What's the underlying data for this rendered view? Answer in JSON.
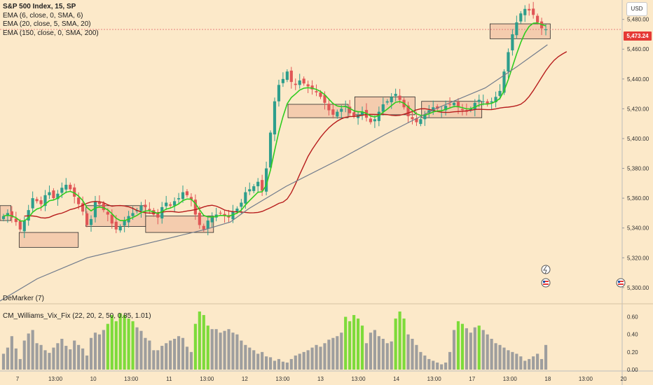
{
  "legend": {
    "symbol": "S&P 500 Index, 15, SP",
    "ema1": "EMA (6, close, 0, SMA, 6)",
    "ema2": "EMA (20, close, 5, SMA, 20)",
    "ema3": "EMA (150, close, 0, SMA, 200)"
  },
  "currency": "USD",
  "last_price_label": "5,473.24",
  "indicators": {
    "demarker": "DeMarker (7)",
    "vix_fix": "CM_Williams_Vix_Fix (22, 20, 2, 50, 0.85, 1.01)"
  },
  "colors": {
    "background": "#fce9c9",
    "candle_up": "#2e9e8c",
    "candle_down": "#e05656",
    "ema_fast": "#2ecc1f",
    "ema_mid": "#b71c1c",
    "ema_slow": "#707b8c",
    "zone_fill": "#f2c1a4",
    "hist_gray": "#9e9e9e",
    "hist_green": "#7ddb3a",
    "price_tag": "#e53935"
  },
  "chart_data": [
    {
      "type": "candlestick",
      "title": "S&P 500 Index, 15, SP",
      "y_ticks": [
        5300,
        5320,
        5340,
        5360,
        5380,
        5400,
        5420,
        5440,
        5460,
        5480
      ],
      "y_tick_labels": [
        "5,300.00",
        "5,320.00",
        "5,340.00",
        "5,360.00",
        "5,380.00",
        "5,400.00",
        "5,420.00",
        "5,440.00",
        "5,460.00",
        "5,480.00"
      ],
      "ylim": [
        5291,
        5493
      ],
      "x_ticks": [
        "7",
        "13:00",
        "10",
        "13:00",
        "11",
        "13:00",
        "12",
        "13:00",
        "13",
        "13:00",
        "14",
        "13:00",
        "17",
        "13:00",
        "18",
        "13:00",
        "20"
      ],
      "last_price": 5473.24,
      "close_series": [
        5348,
        5350,
        5347,
        5344,
        5339,
        5345,
        5352,
        5360,
        5358,
        5356,
        5362,
        5364,
        5360,
        5363,
        5367,
        5369,
        5366,
        5361,
        5356,
        5351,
        5342,
        5346,
        5358,
        5356,
        5352,
        5349,
        5343,
        5339,
        5341,
        5345,
        5348,
        5350,
        5352,
        5355,
        5354,
        5352,
        5349,
        5347,
        5354,
        5357,
        5355,
        5358,
        5360,
        5364,
        5362,
        5359,
        5349,
        5342,
        5339,
        5345,
        5347,
        5349,
        5350,
        5348,
        5347,
        5351,
        5353,
        5357,
        5364,
        5366,
        5368,
        5371,
        5365,
        5380,
        5404,
        5425,
        5436,
        5440,
        5445,
        5438,
        5436,
        5439,
        5437,
        5435,
        5433,
        5431,
        5428,
        5424,
        5419,
        5416,
        5418,
        5420,
        5422,
        5417,
        5415,
        5416,
        5418,
        5414,
        5411,
        5413,
        5418,
        5423,
        5425,
        5428,
        5430,
        5426,
        5421,
        5415,
        5413,
        5411,
        5413,
        5416,
        5419,
        5421,
        5420,
        5419,
        5422,
        5423,
        5424,
        5421,
        5419,
        5418,
        5420,
        5424,
        5426,
        5425,
        5423,
        5425,
        5428,
        5432,
        5445,
        5458,
        5470,
        5478,
        5484,
        5487,
        5486,
        5483,
        5478,
        5474,
        5473.24
      ],
      "series": [
        {
          "name": "EMA (6, close, 0, SMA, 6)",
          "color": "#2ecc1f"
        },
        {
          "name": "EMA (20, close, 5, SMA, 20)",
          "color": "#b71c1c"
        },
        {
          "name": "EMA (150, close, 0, SMA, 200)",
          "color": "#707b8c",
          "points": [
            [
              0,
              5291
            ],
            [
              0.06,
              5306
            ],
            [
              0.14,
              5320
            ],
            [
              0.25,
              5331
            ],
            [
              0.33,
              5339
            ],
            [
              0.37,
              5344
            ],
            [
              0.4,
              5353
            ],
            [
              0.46,
              5368
            ],
            [
              0.55,
              5387
            ],
            [
              0.62,
              5403
            ],
            [
              0.7,
              5420
            ],
            [
              0.78,
              5434
            ],
            [
              0.83,
              5448
            ],
            [
              0.88,
              5463
            ]
          ]
        }
      ],
      "zones": [
        {
          "label": "",
          "x0": 0.0,
          "x1": 0.02,
          "y0": 5345,
          "y1": 5355
        },
        {
          "label": "",
          "x0": 0.035,
          "x1": 0.143,
          "y0": 5327,
          "y1": 5337
        },
        {
          "label": "",
          "x0": 0.157,
          "x1": 0.266,
          "y0": 5341,
          "y1": 5355
        },
        {
          "label": "",
          "x0": 0.266,
          "x1": 0.39,
          "y0": 5337,
          "y1": 5348
        },
        {
          "label": "",
          "x0": 0.526,
          "x1": 0.636,
          "y0": 5414,
          "y1": 5423
        },
        {
          "label": "",
          "x0": 0.648,
          "x1": 0.758,
          "y0": 5416,
          "y1": 5428
        },
        {
          "label": "",
          "x0": 0.77,
          "x1": 0.88,
          "y0": 5414,
          "y1": 5425
        },
        {
          "label": "",
          "x0": 0.895,
          "x1": 1.005,
          "y0": 5467,
          "y1": 5477
        }
      ]
    },
    {
      "type": "bar",
      "title": "CM_Williams_Vix_Fix (22, 20, 2, 50, 0.85, 1.01)",
      "y_ticks": [
        0.0,
        0.2,
        0.4,
        0.6
      ],
      "y_tick_labels": [
        "0.00",
        "0.20",
        "0.40",
        "0.60"
      ],
      "ylim": [
        0,
        0.7
      ],
      "values": [
        0.18,
        0.25,
        0.38,
        0.24,
        0.12,
        0.33,
        0.41,
        0.45,
        0.3,
        0.28,
        0.22,
        0.19,
        0.25,
        0.3,
        0.35,
        0.27,
        0.23,
        0.33,
        0.28,
        0.24,
        0.16,
        0.36,
        0.42,
        0.4,
        0.45,
        0.52,
        0.62,
        0.55,
        0.64,
        0.62,
        0.58,
        0.55,
        0.48,
        0.44,
        0.36,
        0.33,
        0.22,
        0.22,
        0.27,
        0.3,
        0.33,
        0.35,
        0.38,
        0.36,
        0.26,
        0.2,
        0.52,
        0.66,
        0.62,
        0.5,
        0.46,
        0.46,
        0.42,
        0.44,
        0.46,
        0.42,
        0.4,
        0.33,
        0.28,
        0.25,
        0.22,
        0.18,
        0.2,
        0.15,
        0.14,
        0.1,
        0.12,
        0.09,
        0.08,
        0.12,
        0.16,
        0.18,
        0.2,
        0.22,
        0.25,
        0.28,
        0.26,
        0.3,
        0.34,
        0.36,
        0.38,
        0.42,
        0.6,
        0.55,
        0.62,
        0.58,
        0.5,
        0.3,
        0.42,
        0.45,
        0.38,
        0.35,
        0.3,
        0.32,
        0.58,
        0.66,
        0.58,
        0.4,
        0.35,
        0.28,
        0.2,
        0.16,
        0.12,
        0.1,
        0.08,
        0.06,
        0.08,
        0.2,
        0.45,
        0.55,
        0.52,
        0.47,
        0.42,
        0.48,
        0.5,
        0.45,
        0.4,
        0.35,
        0.3,
        0.28,
        0.25,
        0.22,
        0.2,
        0.18,
        0.15,
        0.1,
        0.12,
        0.15,
        0.18,
        0.12,
        0.28
      ],
      "highlight_color": "#7ddb3a"
    }
  ]
}
